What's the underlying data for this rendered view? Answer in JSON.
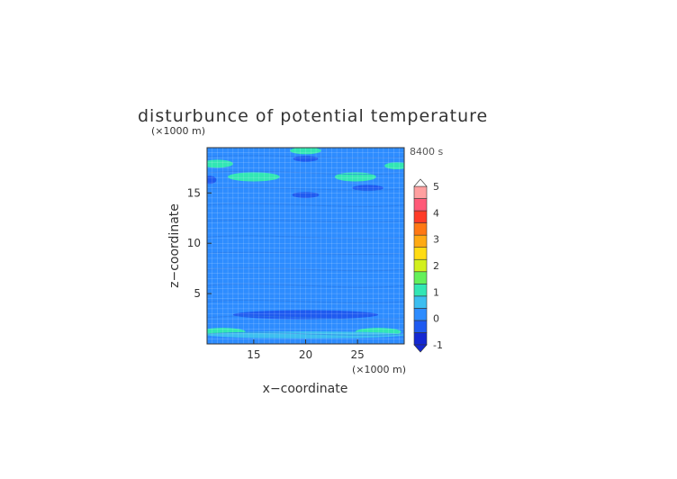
{
  "chart_data": {
    "type": "heatmap",
    "title": "disturbunce of potential temperature",
    "time_label": "8400 s",
    "xlabel": "x−coordinate",
    "ylabel": "z−coordinate",
    "x_unit": "(×1000 m)",
    "y_unit": "(×1000 m)",
    "xlim": [
      10.5,
      29.5
    ],
    "ylim": [
      0,
      19.5
    ],
    "x_ticks": [
      15,
      20,
      25
    ],
    "y_ticks": [
      5,
      10,
      15
    ],
    "grid": true,
    "colorbar": {
      "levels": [
        -1,
        -0.5,
        0,
        0.5,
        1,
        1.5,
        2,
        2.5,
        3,
        3.5,
        4,
        4.5,
        5
      ],
      "colors": [
        "#1428d2",
        "#1e5af0",
        "#2d8cff",
        "#3cbef0",
        "#32e6b4",
        "#64f05a",
        "#d2f01e",
        "#ffdc14",
        "#ffaa14",
        "#ff7814",
        "#ff3c28",
        "#ff5a78",
        "#ffa0a0"
      ],
      "tick_labels": [
        "-1",
        "0",
        "1",
        "2",
        "3",
        "4",
        "5"
      ],
      "tick_values": [
        -1,
        0,
        1,
        2,
        3,
        4,
        5
      ],
      "extend": "both"
    },
    "background_value": -0.25,
    "features": [
      {
        "x": 20,
        "z": 19.2,
        "rx": 1.5,
        "rz": 0.35,
        "value": 0.8
      },
      {
        "x": 11.5,
        "z": 17.9,
        "rx": 1.5,
        "rz": 0.4,
        "value": 0.8
      },
      {
        "x": 28.8,
        "z": 17.7,
        "rx": 1.2,
        "rz": 0.35,
        "value": 0.8
      },
      {
        "x": 15,
        "z": 16.6,
        "rx": 2.5,
        "rz": 0.45,
        "value": 0.8
      },
      {
        "x": 24.8,
        "z": 16.6,
        "rx": 2.0,
        "rz": 0.45,
        "value": 0.8
      },
      {
        "x": 12,
        "z": 1.2,
        "rx": 2.2,
        "rz": 0.4,
        "value": 0.8
      },
      {
        "x": 27,
        "z": 1.2,
        "rx": 2.2,
        "rz": 0.4,
        "value": 0.8
      },
      {
        "x": 20,
        "z": 0.9,
        "rx": 9.5,
        "rz": 0.35,
        "value": 0.3
      },
      {
        "x": 20,
        "z": 18.4,
        "rx": 1.2,
        "rz": 0.3,
        "value": -0.75
      },
      {
        "x": 10.8,
        "z": 16.3,
        "rx": 0.6,
        "rz": 0.4,
        "value": -0.75
      },
      {
        "x": 20,
        "z": 14.8,
        "rx": 1.3,
        "rz": 0.3,
        "value": -0.75
      },
      {
        "x": 26,
        "z": 15.5,
        "rx": 1.5,
        "rz": 0.3,
        "value": -0.75
      },
      {
        "x": 20,
        "z": 2.9,
        "rx": 7.0,
        "rz": 0.45,
        "value": -0.75
      }
    ]
  }
}
